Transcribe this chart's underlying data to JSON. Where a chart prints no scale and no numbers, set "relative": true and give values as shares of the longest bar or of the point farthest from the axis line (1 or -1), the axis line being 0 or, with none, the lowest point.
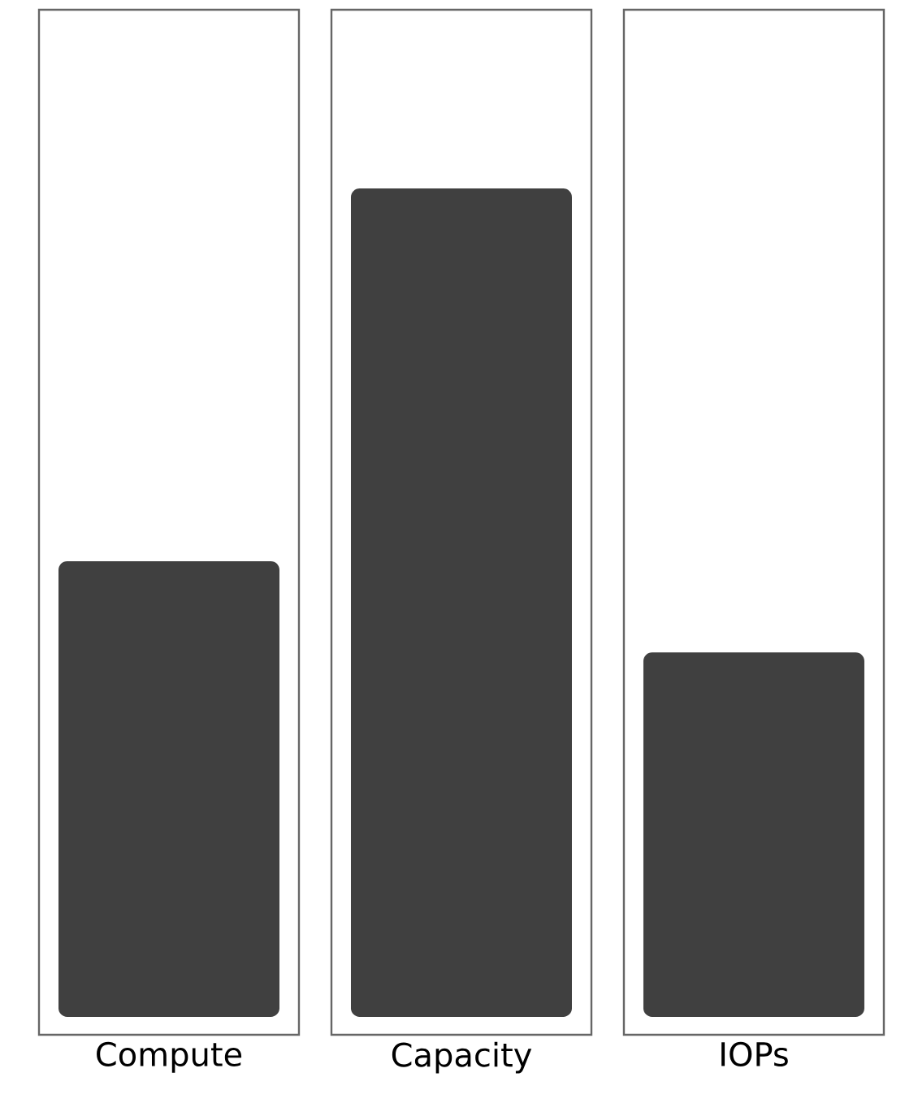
{
  "chart_data": {
    "type": "bar",
    "relative": true,
    "categories": [
      "Compute",
      "Capacity",
      "IOPs"
    ],
    "values": [
      0.55,
      1,
      0.44
    ],
    "color": "#404040"
  }
}
